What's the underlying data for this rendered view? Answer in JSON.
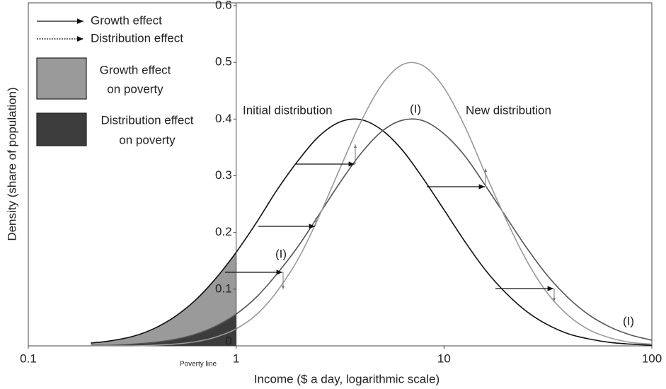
{
  "chart_data": {
    "type": "line",
    "x_label": "Income ($ a day, logarithmic scale)",
    "y_label": "Density (share of population)",
    "xlog": true,
    "xlim": [
      0.1,
      100
    ],
    "xticks": [
      0.1,
      1,
      10,
      100
    ],
    "ylim": [
      0,
      0.6
    ],
    "yticks": [
      0,
      0.1,
      0.2,
      0.3,
      0.4,
      0.5,
      0.6
    ],
    "x": [
      0.2,
      0.25,
      0.32,
      0.4,
      0.5,
      0.63,
      0.79,
      1,
      1.26,
      1.58,
      2,
      2.51,
      3.16,
      3.98,
      5.01,
      6.31,
      7.94,
      10,
      12.6,
      15.8,
      20,
      25.1,
      31.6,
      39.8,
      50.1,
      63.1,
      79.4,
      100
    ],
    "series": [
      {
        "name": "Initial distribution",
        "color": "#111111",
        "values": [
          0.005,
          0.009,
          0.017,
          0.03,
          0.05,
          0.079,
          0.117,
          0.165,
          0.219,
          0.276,
          0.328,
          0.37,
          0.395,
          0.399,
          0.381,
          0.345,
          0.295,
          0.24,
          0.184,
          0.134,
          0.092,
          0.06,
          0.037,
          0.021,
          0.012,
          0.006,
          0.003,
          0.001
        ]
      },
      {
        "name": "New distribution",
        "color": "#555555",
        "values": [
          0.001,
          0.001,
          0.003,
          0.006,
          0.011,
          0.02,
          0.034,
          0.056,
          0.087,
          0.128,
          0.177,
          0.232,
          0.288,
          0.339,
          0.378,
          0.398,
          0.397,
          0.374,
          0.335,
          0.283,
          0.226,
          0.172,
          0.123,
          0.084,
          0.054,
          0.033,
          0.019,
          0.01
        ]
      },
      {
        "color": "#9a9a9a",
        "values": [
          0.0,
          0.0,
          0.0,
          0.001,
          0.003,
          0.007,
          0.015,
          0.03,
          0.056,
          0.097,
          0.155,
          0.229,
          0.313,
          0.395,
          0.46,
          0.496,
          0.494,
          0.455,
          0.387,
          0.304,
          0.221,
          0.149,
          0.092,
          0.053,
          0.028,
          0.014,
          0.006,
          0.003
        ]
      }
    ],
    "growth_area_color": "#9a9a9a",
    "distribution_area_color": "#3c3c3c",
    "poverty_line_label": "Poverty line",
    "annotations": [
      "(I)",
      "(I)",
      "(I)"
    ],
    "legend": [
      "Growth effect",
      "Distribution effect",
      [
        "Growth effect",
        "on poverty"
      ],
      [
        "Distribution effect",
        "on poverty"
      ]
    ]
  }
}
